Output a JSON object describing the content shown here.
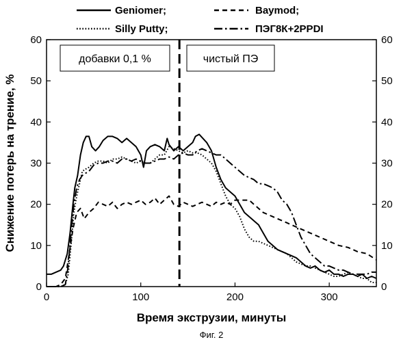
{
  "chart_data": {
    "type": "line",
    "xlabel": "Время экструзии, минуты",
    "ylabel": "Снижение потерь на трение, %",
    "caption": "Фиг. 2",
    "xlim": [
      0,
      350
    ],
    "ylim": [
      0,
      60
    ],
    "xticks": [
      0,
      100,
      200,
      300
    ],
    "yticks": [
      0,
      10,
      20,
      30,
      40,
      50,
      60
    ],
    "yticks_right": [
      0,
      10,
      20,
      30,
      40,
      50,
      60
    ],
    "grid": false,
    "legend_position": "top",
    "vline_x": 141,
    "annotations": {
      "left_box": "добавки 0,1 %",
      "right_box": "чистый ПЭ"
    },
    "series": [
      {
        "name": "Geniomer;",
        "style": "solid",
        "points": [
          [
            0,
            3
          ],
          [
            5,
            3
          ],
          [
            10,
            3.5
          ],
          [
            15,
            4
          ],
          [
            18,
            5
          ],
          [
            22,
            8
          ],
          [
            25,
            13
          ],
          [
            28,
            20
          ],
          [
            30,
            24
          ],
          [
            33,
            27
          ],
          [
            36,
            32
          ],
          [
            39,
            35
          ],
          [
            42,
            36.5
          ],
          [
            45,
            36.5
          ],
          [
            48,
            34
          ],
          [
            52,
            33
          ],
          [
            56,
            34
          ],
          [
            60,
            35.5
          ],
          [
            65,
            36.5
          ],
          [
            70,
            36.5
          ],
          [
            75,
            36
          ],
          [
            80,
            35
          ],
          [
            85,
            36
          ],
          [
            90,
            35
          ],
          [
            95,
            34
          ],
          [
            100,
            32
          ],
          [
            103,
            29
          ],
          [
            106,
            33
          ],
          [
            110,
            34
          ],
          [
            115,
            34.5
          ],
          [
            120,
            34
          ],
          [
            125,
            33
          ],
          [
            128,
            36
          ],
          [
            130,
            34.5
          ],
          [
            135,
            33
          ],
          [
            140,
            34
          ],
          [
            145,
            33
          ],
          [
            150,
            34
          ],
          [
            155,
            35
          ],
          [
            158,
            36.5
          ],
          [
            162,
            37
          ],
          [
            166,
            36
          ],
          [
            170,
            35
          ],
          [
            175,
            33
          ],
          [
            180,
            29
          ],
          [
            185,
            26
          ],
          [
            190,
            24
          ],
          [
            195,
            23
          ],
          [
            200,
            22
          ],
          [
            205,
            20
          ],
          [
            210,
            18
          ],
          [
            215,
            17
          ],
          [
            220,
            16
          ],
          [
            225,
            15
          ],
          [
            230,
            13
          ],
          [
            235,
            11
          ],
          [
            240,
            10
          ],
          [
            245,
            9
          ],
          [
            250,
            8.5
          ],
          [
            255,
            8
          ],
          [
            260,
            7.5
          ],
          [
            265,
            7
          ],
          [
            270,
            6
          ],
          [
            275,
            5
          ],
          [
            280,
            4.5
          ],
          [
            285,
            5
          ],
          [
            290,
            4
          ],
          [
            295,
            3.5
          ],
          [
            300,
            4
          ],
          [
            305,
            3
          ],
          [
            310,
            3
          ],
          [
            315,
            2.5
          ],
          [
            320,
            3
          ],
          [
            325,
            3
          ],
          [
            330,
            2.5
          ],
          [
            335,
            3
          ],
          [
            340,
            2
          ],
          [
            345,
            2.5
          ],
          [
            350,
            2
          ]
        ]
      },
      {
        "name": "Baymod;",
        "style": "dashed",
        "points": [
          [
            0,
            0
          ],
          [
            10,
            0
          ],
          [
            15,
            0.5
          ],
          [
            20,
            2
          ],
          [
            24,
            8
          ],
          [
            28,
            14
          ],
          [
            32,
            18
          ],
          [
            36,
            19
          ],
          [
            40,
            16.5
          ],
          [
            45,
            18
          ],
          [
            50,
            19
          ],
          [
            55,
            20.5
          ],
          [
            60,
            20
          ],
          [
            65,
            19.5
          ],
          [
            70,
            20.5
          ],
          [
            75,
            19
          ],
          [
            80,
            20
          ],
          [
            85,
            20.5
          ],
          [
            90,
            20
          ],
          [
            95,
            20.5
          ],
          [
            100,
            21
          ],
          [
            105,
            20
          ],
          [
            110,
            20.5
          ],
          [
            115,
            21.5
          ],
          [
            120,
            20
          ],
          [
            125,
            21
          ],
          [
            130,
            22
          ],
          [
            135,
            20
          ],
          [
            140,
            19.5
          ],
          [
            145,
            20.5
          ],
          [
            150,
            20
          ],
          [
            155,
            19.5
          ],
          [
            160,
            20
          ],
          [
            165,
            20.5
          ],
          [
            170,
            20
          ],
          [
            175,
            19.5
          ],
          [
            180,
            20.5
          ],
          [
            185,
            20
          ],
          [
            190,
            20.5
          ],
          [
            195,
            20
          ],
          [
            200,
            21
          ],
          [
            205,
            21
          ],
          [
            210,
            21
          ],
          [
            215,
            21
          ],
          [
            220,
            20
          ],
          [
            225,
            19
          ],
          [
            230,
            18
          ],
          [
            235,
            17.5
          ],
          [
            240,
            17
          ],
          [
            245,
            16.5
          ],
          [
            250,
            16
          ],
          [
            255,
            15.5
          ],
          [
            260,
            15
          ],
          [
            265,
            14.5
          ],
          [
            270,
            14
          ],
          [
            275,
            13.5
          ],
          [
            280,
            13
          ],
          [
            285,
            12.5
          ],
          [
            290,
            12
          ],
          [
            295,
            11.5
          ],
          [
            300,
            11
          ],
          [
            310,
            10
          ],
          [
            320,
            9.5
          ],
          [
            330,
            8.5
          ],
          [
            340,
            8
          ],
          [
            350,
            6.5
          ]
        ]
      },
      {
        "name": "Silly Putty;",
        "style": "dotted",
        "points": [
          [
            0,
            0
          ],
          [
            10,
            0
          ],
          [
            15,
            0
          ],
          [
            20,
            0.5
          ],
          [
            23,
            3
          ],
          [
            26,
            10
          ],
          [
            29,
            18
          ],
          [
            32,
            22
          ],
          [
            35,
            25
          ],
          [
            38,
            28
          ],
          [
            41,
            28.5
          ],
          [
            45,
            29
          ],
          [
            50,
            30
          ],
          [
            55,
            30.5
          ],
          [
            60,
            30.5
          ],
          [
            65,
            30
          ],
          [
            70,
            31
          ],
          [
            75,
            31
          ],
          [
            80,
            31.5
          ],
          [
            85,
            31
          ],
          [
            90,
            30.5
          ],
          [
            95,
            30
          ],
          [
            100,
            30.5
          ],
          [
            105,
            30
          ],
          [
            110,
            30
          ],
          [
            115,
            31
          ],
          [
            120,
            32
          ],
          [
            125,
            32
          ],
          [
            130,
            34
          ],
          [
            135,
            33.5
          ],
          [
            140,
            33
          ],
          [
            145,
            32.5
          ],
          [
            150,
            33
          ],
          [
            155,
            32.5
          ],
          [
            160,
            32.5
          ],
          [
            165,
            32
          ],
          [
            170,
            31
          ],
          [
            175,
            30
          ],
          [
            180,
            28
          ],
          [
            185,
            25
          ],
          [
            190,
            22
          ],
          [
            195,
            20
          ],
          [
            200,
            19
          ],
          [
            205,
            17
          ],
          [
            210,
            14
          ],
          [
            215,
            12
          ],
          [
            220,
            11
          ],
          [
            225,
            11
          ],
          [
            230,
            10.5
          ],
          [
            235,
            10
          ],
          [
            240,
            9.5
          ],
          [
            245,
            9
          ],
          [
            250,
            8.5
          ],
          [
            255,
            8
          ],
          [
            260,
            7
          ],
          [
            265,
            6
          ],
          [
            270,
            5.5
          ],
          [
            275,
            5
          ],
          [
            280,
            5
          ],
          [
            285,
            4.5
          ],
          [
            290,
            4
          ],
          [
            295,
            3.5
          ],
          [
            300,
            3
          ],
          [
            305,
            2.5
          ],
          [
            310,
            2.5
          ],
          [
            315,
            3
          ],
          [
            320,
            3.5
          ],
          [
            325,
            3
          ],
          [
            330,
            2.5
          ],
          [
            335,
            2
          ],
          [
            340,
            2
          ],
          [
            345,
            1
          ],
          [
            350,
            1
          ]
        ]
      },
      {
        "name": "ПЭГ8К+2PPDI",
        "style": "dashdot",
        "points": [
          [
            0,
            0
          ],
          [
            15,
            0
          ],
          [
            20,
            0.5
          ],
          [
            23,
            5
          ],
          [
            26,
            13
          ],
          [
            29,
            20
          ],
          [
            32,
            24
          ],
          [
            35,
            26
          ],
          [
            38,
            27
          ],
          [
            41,
            27.5
          ],
          [
            45,
            28
          ],
          [
            50,
            29.5
          ],
          [
            55,
            30
          ],
          [
            60,
            30
          ],
          [
            65,
            30.5
          ],
          [
            70,
            30.5
          ],
          [
            75,
            30
          ],
          [
            80,
            31
          ],
          [
            85,
            31
          ],
          [
            90,
            30.5
          ],
          [
            95,
            31
          ],
          [
            100,
            30.5
          ],
          [
            105,
            30
          ],
          [
            110,
            30
          ],
          [
            115,
            30.5
          ],
          [
            120,
            31
          ],
          [
            125,
            31
          ],
          [
            130,
            31.5
          ],
          [
            135,
            31
          ],
          [
            140,
            32
          ],
          [
            145,
            32.5
          ],
          [
            150,
            32
          ],
          [
            155,
            32
          ],
          [
            160,
            33
          ],
          [
            165,
            33.5
          ],
          [
            170,
            33
          ],
          [
            175,
            32.5
          ],
          [
            180,
            32
          ],
          [
            185,
            32
          ],
          [
            190,
            31
          ],
          [
            195,
            30
          ],
          [
            200,
            29
          ],
          [
            205,
            28
          ],
          [
            210,
            27
          ],
          [
            215,
            26.5
          ],
          [
            220,
            26
          ],
          [
            225,
            25
          ],
          [
            230,
            25
          ],
          [
            235,
            24.5
          ],
          [
            240,
            24
          ],
          [
            245,
            23
          ],
          [
            250,
            21
          ],
          [
            255,
            20
          ],
          [
            260,
            18
          ],
          [
            265,
            15
          ],
          [
            270,
            12
          ],
          [
            275,
            10
          ],
          [
            280,
            8
          ],
          [
            285,
            7
          ],
          [
            290,
            6
          ],
          [
            295,
            5
          ],
          [
            300,
            5
          ],
          [
            305,
            4.5
          ],
          [
            310,
            4
          ],
          [
            315,
            4
          ],
          [
            320,
            3.5
          ],
          [
            325,
            3
          ],
          [
            330,
            3
          ],
          [
            335,
            3
          ],
          [
            340,
            3
          ],
          [
            345,
            3.5
          ],
          [
            350,
            3.5
          ]
        ]
      }
    ]
  }
}
